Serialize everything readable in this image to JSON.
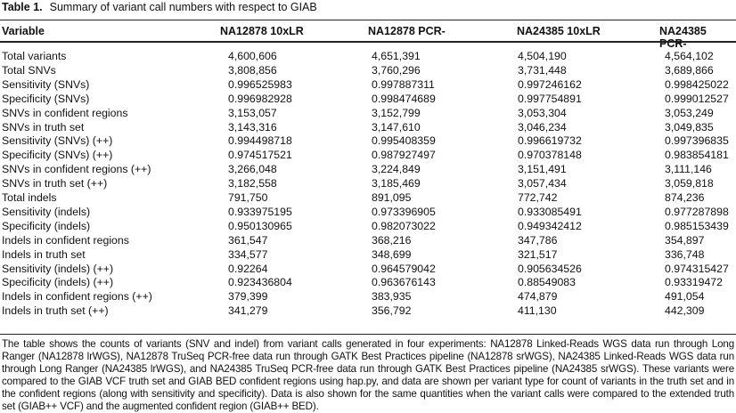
{
  "table": {
    "label": "Table 1.",
    "title": "Summary of variant call numbers with respect to GIAB",
    "headers": [
      "Variable",
      "NA12878 10xLR",
      "NA12878 PCR-",
      "NA24385 10xLR",
      "NA24385 PCR-"
    ],
    "rows": [
      [
        "Total variants",
        "4,600,606",
        "4,651,391",
        "4,504,190",
        "4,564,102"
      ],
      [
        "Total SNVs",
        "3,808,856",
        "3,760,296",
        "3,731,448",
        "3,689,866"
      ],
      [
        "Sensitivity (SNVs)",
        "0.996525983",
        "0.997887311",
        "0.997246162",
        "0.998425022"
      ],
      [
        "Specificity (SNVs)",
        "0.996982928",
        "0.998474689",
        "0.997754891",
        "0.999012527"
      ],
      [
        "SNVs in confident regions",
        "3,153,057",
        "3,152,799",
        "3,053,304",
        "3,053,249"
      ],
      [
        "SNVs in truth set",
        "3,143,316",
        "3,147,610",
        "3,046,234",
        "3,049,835"
      ],
      [
        "Sensitivity (SNVs) (++)",
        "0.994498718",
        "0.995408359",
        "0.996619732",
        "0.997396835"
      ],
      [
        "Specificity (SNVs) (++)",
        "0.974517521",
        "0.987927497",
        "0.970378148",
        "0.983854181"
      ],
      [
        "SNVs in confident regions (++)",
        "3,266,048",
        "3,224,849",
        "3,151,491",
        "3,111,146"
      ],
      [
        "SNVs in truth set (++)",
        "3,182,558",
        "3,185,469",
        "3,057,434",
        "3,059,818"
      ],
      [
        "Total indels",
        "791,750",
        "891,095",
        "772,742",
        "874,236"
      ],
      [
        "Sensitivity (indels)",
        "0.933975195",
        "0.973396905",
        "0.933085491",
        "0.977287898"
      ],
      [
        "Specificity (indels)",
        "0.950130965",
        "0.982073022",
        "0.949342412",
        "0.985153439"
      ],
      [
        "Indels in confident regions",
        "361,547",
        "368,216",
        "347,786",
        "354,897"
      ],
      [
        "Indels in truth set",
        "334,577",
        "348,699",
        "321,517",
        "336,748"
      ],
      [
        "Sensitivity (indels) (++)",
        "0.92264",
        "0.964579042",
        "0.905634526",
        "0.974315427"
      ],
      [
        "Specificity (indels) (++)",
        "0.923436804",
        "0.963676143",
        "0.88549083",
        "0.93319472"
      ],
      [
        "Indels in confident regions (++)",
        "379,399",
        "383,935",
        "474,879",
        "491,054"
      ],
      [
        "Indels in truth set (++)",
        "341,279",
        "356,792",
        "411,130",
        "442,309"
      ]
    ],
    "footnote": "The table shows the counts of variants (SNV and indel) from variant calls generated in four experiments: NA12878 Linked-Reads WGS data run through Long Ranger (NA12878 lrWGS), NA12878 TruSeq PCR-free data run through GATK Best Practices pipeline (NA12878 srWGS), NA24385 Linked-Reads WGS data run through Long Ranger (NA24385 lrWGS), and NA24385 TruSeq PCR-free data run through GATK Best Practices pipeline (NA24385 srWGS). These variants were compared to the GIAB VCF truth set and GIAB BED confident regions using hap.py, and data are shown per variant type for count of variants in the truth set and in the confident regions (along with sensitivity and specificity). Data is also shown for the same quantities when the variant calls were compared to the extended truth set (GIAB++ VCF) and the augmented confident region (GIAB++ BED)."
  }
}
